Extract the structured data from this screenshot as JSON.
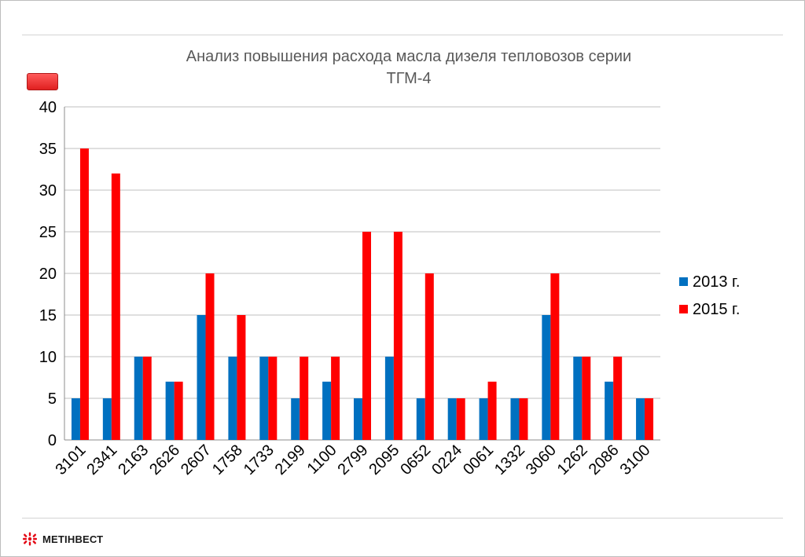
{
  "colors": {
    "series_2013": "#0070c0",
    "series_2015": "#ff0000",
    "grid": "#bfbfbf",
    "title": "#595959"
  },
  "logo": {
    "text": "МЕТІНВЕСТ",
    "icon": "metinvest-star-icon"
  },
  "chart_data": {
    "type": "bar",
    "title_lines": [
      "Анализ повышения расхода масла дизеля тепловозов серии",
      "ТГМ-4"
    ],
    "categories": [
      "3101",
      "2341",
      "2163",
      "2626",
      "2607",
      "1758",
      "1733",
      "2199",
      "1100",
      "2799",
      "2095",
      "0652",
      "0224",
      "0061",
      "1332",
      "3060",
      "1262",
      "2086",
      "3100"
    ],
    "series": [
      {
        "name": "2013 г.",
        "color": "#0070c0",
        "values": [
          5,
          5,
          10,
          7,
          15,
          10,
          10,
          5,
          7,
          5,
          10,
          5,
          5,
          5,
          5,
          15,
          10,
          7,
          5
        ]
      },
      {
        "name": "2015 г.",
        "color": "#ff0000",
        "values": [
          35,
          32,
          10,
          7,
          20,
          15,
          10,
          10,
          10,
          25,
          25,
          20,
          5,
          7,
          5,
          20,
          10,
          10,
          5
        ]
      }
    ],
    "ylim": [
      0,
      40
    ],
    "yticks": [
      0,
      5,
      10,
      15,
      20,
      25,
      30,
      35,
      40
    ],
    "grid": true,
    "legend_position": "right"
  }
}
